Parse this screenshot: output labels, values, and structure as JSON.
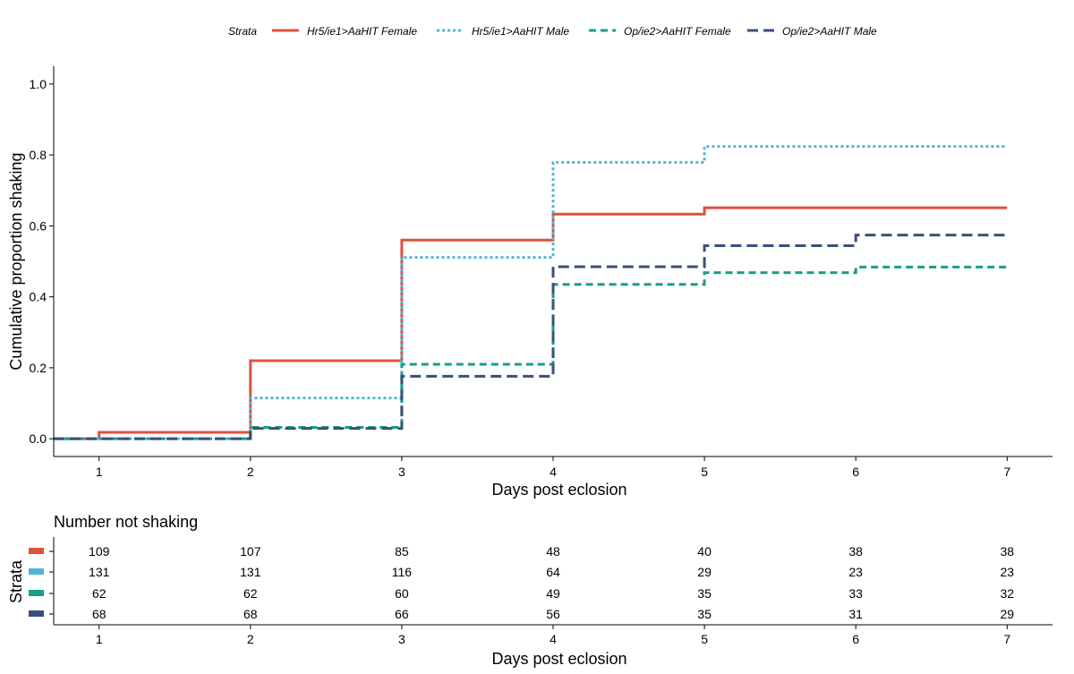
{
  "colors": {
    "Hr5_female": "#e0503e",
    "Hr5_male": "#4eb6d2",
    "Op_female": "#14a08a",
    "Op_male": "#3a4f7a",
    "axis": "#000000"
  },
  "legend": {
    "title": "Strata",
    "position": "top",
    "items": [
      {
        "label": "Hr5/ie1>AaHIT Female",
        "color": "#e0503e",
        "dash": "solid"
      },
      {
        "label": "Hr5/ie1>AaHIT Male",
        "color": "#4eb6d2",
        "dash": "dotted"
      },
      {
        "label": "Op/ie2>AaHIT Female",
        "color": "#14a08a",
        "dash": "dashed"
      },
      {
        "label": "Op/ie2>AaHIT Male",
        "color": "#3a4f7a",
        "dash": "longdash"
      }
    ]
  },
  "chart_data": [
    {
      "type": "line",
      "step": true,
      "title": "",
      "xlabel": "Days post eclosion",
      "ylabel": "Cumulative proportion shaking",
      "xlim": [
        0.7,
        7.3
      ],
      "ylim": [
        -0.05,
        1.05
      ],
      "xticks": [
        1,
        2,
        3,
        4,
        5,
        6,
        7
      ],
      "yticks": [
        "0.0",
        "0.2",
        "0.4",
        "0.6",
        "0.8",
        "1.0"
      ],
      "grid": false,
      "legend_position": "top",
      "series": [
        {
          "name": "Hr5/ie1>AaHIT Female",
          "color": "#e0503e",
          "dash": "solid",
          "x": [
            0.7,
            1,
            2,
            3,
            4,
            5,
            6,
            7
          ],
          "y": [
            0.0,
            0.018,
            0.22,
            0.56,
            0.633,
            0.651,
            0.651,
            0.651
          ]
        },
        {
          "name": "Hr5/ie1>AaHIT Male",
          "color": "#4eb6d2",
          "dash": "dotted",
          "x": [
            0.7,
            1,
            2,
            3,
            4,
            5,
            6,
            7
          ],
          "y": [
            0.0,
            0.0,
            0.115,
            0.511,
            0.779,
            0.824,
            0.824,
            0.824
          ]
        },
        {
          "name": "Op/ie2>AaHIT Female",
          "color": "#14a08a",
          "dash": "dashed",
          "x": [
            0.7,
            1,
            2,
            3,
            4,
            5,
            6,
            7
          ],
          "y": [
            0.0,
            0.0,
            0.032,
            0.21,
            0.435,
            0.468,
            0.484,
            0.484
          ]
        },
        {
          "name": "Op/ie2>AaHIT Male",
          "color": "#3a4f7a",
          "dash": "longdash",
          "x": [
            0.7,
            1,
            2,
            3,
            4,
            5,
            6,
            7
          ],
          "y": [
            0.0,
            0.0,
            0.029,
            0.176,
            0.485,
            0.544,
            0.574,
            0.574
          ]
        }
      ]
    },
    {
      "type": "table",
      "title": "Number not shaking",
      "xlabel": "Days post eclosion",
      "ylabel": "Strata",
      "xticks": [
        1,
        2,
        3,
        4,
        5,
        6,
        7
      ],
      "rows": [
        {
          "color": "#e0503e",
          "values": [
            109,
            107,
            85,
            48,
            40,
            38,
            38
          ]
        },
        {
          "color": "#4eb6d2",
          "values": [
            131,
            131,
            116,
            64,
            29,
            23,
            23
          ]
        },
        {
          "color": "#14a08a",
          "values": [
            62,
            62,
            60,
            49,
            35,
            33,
            32
          ]
        },
        {
          "color": "#3a4f7a",
          "values": [
            68,
            68,
            66,
            56,
            35,
            31,
            29
          ]
        }
      ]
    }
  ]
}
